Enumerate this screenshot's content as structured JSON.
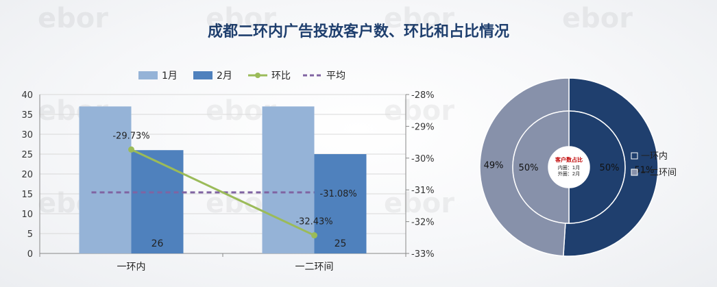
{
  "title": "成都二环内广告投放客户数、环比和占比情况",
  "colors": {
    "jan": "#95b3d7",
    "feb": "#4f81bd",
    "ratio": "#9bbb59",
    "avg": "#8064a2",
    "donut_dark": "#1f3f6e",
    "donut_grey": "#8791aa",
    "donut_inner_dark": "#1f3f6e",
    "donut_inner_grey": "#8791aa"
  },
  "chart_data": [
    {
      "type": "bar",
      "legend": [
        "1月",
        "2月",
        "环比",
        "平均"
      ],
      "categories": [
        "一环内",
        "一二环间"
      ],
      "series": [
        {
          "name": "1月",
          "values": [
            37,
            37
          ]
        },
        {
          "name": "2月",
          "values": [
            26,
            25
          ],
          "data_labels": [
            "26",
            "25"
          ]
        }
      ],
      "line_series": [
        {
          "name": "环比",
          "values": [
            -29.73,
            -32.43
          ],
          "data_labels": [
            "-29.73%",
            "-32.43%"
          ]
        },
        {
          "name": "平均",
          "values": [
            -31.08,
            -31.08
          ],
          "data_labels": [
            "",
            "-31.08%"
          ],
          "style": "dashed"
        }
      ],
      "ylim": [
        0,
        40
      ],
      "yticks": [
        "0",
        "5",
        "10",
        "15",
        "20",
        "25",
        "30",
        "35",
        "40"
      ],
      "y2lim": [
        -33,
        -28
      ],
      "y2ticks": [
        "-33%",
        "-32%",
        "-31%",
        "-30%",
        "-29%",
        "-28%"
      ]
    },
    {
      "type": "pie",
      "variant": "double-donut",
      "center_title": "客户数占比",
      "center_lines": [
        "内圈：1月",
        "外圈：2月"
      ],
      "legend": [
        "一环内",
        "一二环间"
      ],
      "outer": {
        "values": [
          51,
          49
        ],
        "labels": [
          "51%",
          "49%"
        ]
      },
      "inner": {
        "values": [
          50,
          50
        ],
        "labels": [
          "50%",
          "50%"
        ]
      }
    }
  ]
}
